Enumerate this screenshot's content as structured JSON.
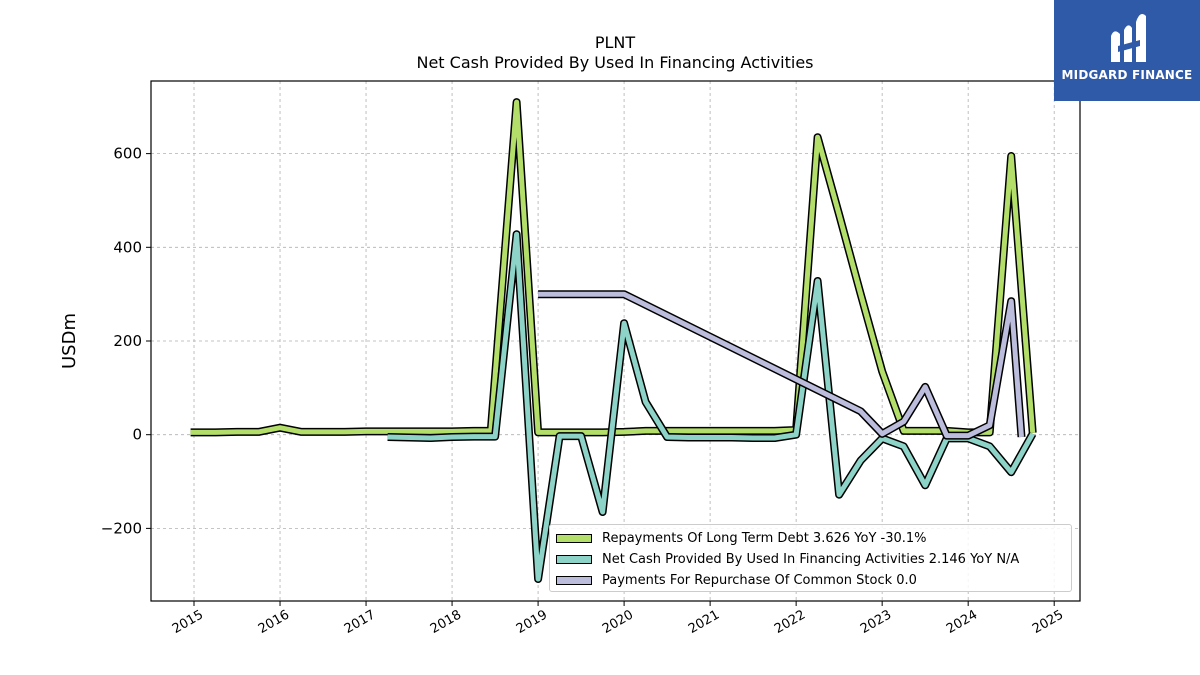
{
  "chart_data": {
    "type": "line",
    "title": "PLNT",
    "subtitle": "Net Cash Provided By Used In Financing Activities",
    "ylabel": "USDm",
    "xlabel": "",
    "xlim": [
      2014.5,
      2025.3
    ],
    "ylim": [
      -355,
      755
    ],
    "x_ticks": [
      2015,
      2016,
      2017,
      2018,
      2019,
      2020,
      2021,
      2022,
      2023,
      2024,
      2025
    ],
    "y_ticks": [
      -200,
      0,
      200,
      400,
      600
    ],
    "y_tick_labels": [
      "−200",
      "0",
      "200",
      "400",
      "600"
    ],
    "grid": true,
    "legend_position": "lower-right",
    "series": [
      {
        "name": "Repayments Of Long Term Debt",
        "legend_label": "Repayments Of Long Term Debt  3.626 YoY -30.1%",
        "color": "#b3de69",
        "points": [
          [
            2014.96,
            5
          ],
          [
            2015.25,
            5
          ],
          [
            2015.5,
            6
          ],
          [
            2015.75,
            6
          ],
          [
            2016.0,
            15
          ],
          [
            2016.25,
            6
          ],
          [
            2016.5,
            6
          ],
          [
            2016.75,
            6
          ],
          [
            2017.0,
            7
          ],
          [
            2017.25,
            7
          ],
          [
            2017.5,
            7
          ],
          [
            2017.75,
            7
          ],
          [
            2018.0,
            7
          ],
          [
            2018.25,
            8
          ],
          [
            2018.45,
            8
          ],
          [
            2018.75,
            710
          ],
          [
            2019.0,
            5
          ],
          [
            2019.25,
            5
          ],
          [
            2019.5,
            5
          ],
          [
            2019.75,
            5
          ],
          [
            2020.0,
            6
          ],
          [
            2020.25,
            8
          ],
          [
            2020.5,
            8
          ],
          [
            2020.75,
            8
          ],
          [
            2021.0,
            8
          ],
          [
            2021.25,
            8
          ],
          [
            2021.5,
            8
          ],
          [
            2021.75,
            8
          ],
          [
            2022.0,
            10
          ],
          [
            2022.25,
            635
          ],
          [
            2022.5,
            470
          ],
          [
            2022.75,
            300
          ],
          [
            2023.0,
            135
          ],
          [
            2023.25,
            8
          ],
          [
            2023.5,
            8
          ],
          [
            2023.75,
            8
          ],
          [
            2024.0,
            5
          ],
          [
            2024.25,
            5
          ],
          [
            2024.5,
            595
          ],
          [
            2024.75,
            4
          ]
        ]
      },
      {
        "name": "Net Cash Provided By Used In Financing Activities",
        "legend_label": "Net Cash Provided By Used In Financing Activities  2.146 YoY N/A",
        "color": "#8dd3c7",
        "points": [
          [
            2017.25,
            -5
          ],
          [
            2017.5,
            -6
          ],
          [
            2017.75,
            -7
          ],
          [
            2018.0,
            -5
          ],
          [
            2018.25,
            -4
          ],
          [
            2018.5,
            -4
          ],
          [
            2018.75,
            428
          ],
          [
            2019.0,
            -308
          ],
          [
            2019.25,
            -3
          ],
          [
            2019.5,
            -3
          ],
          [
            2019.75,
            -165
          ],
          [
            2020.0,
            238
          ],
          [
            2020.25,
            70
          ],
          [
            2020.5,
            -5
          ],
          [
            2020.75,
            -6
          ],
          [
            2021.0,
            -6
          ],
          [
            2021.25,
            -6
          ],
          [
            2021.5,
            -7
          ],
          [
            2021.75,
            -7
          ],
          [
            2022.0,
            0
          ],
          [
            2022.25,
            328
          ],
          [
            2022.5,
            -128
          ],
          [
            2022.75,
            -55
          ],
          [
            2023.0,
            -8
          ],
          [
            2023.25,
            -25
          ],
          [
            2023.5,
            -108
          ],
          [
            2023.75,
            -8
          ],
          [
            2024.0,
            -8
          ],
          [
            2024.25,
            -25
          ],
          [
            2024.5,
            -80
          ],
          [
            2024.75,
            2
          ]
        ]
      },
      {
        "name": "Payments For Repurchase Of Common Stock",
        "legend_label": "Payments For Repurchase Of Common Stock  0.0",
        "color": "#bcbddc",
        "points": [
          [
            2019.0,
            300
          ],
          [
            2019.25,
            300
          ],
          [
            2019.5,
            300
          ],
          [
            2019.75,
            300
          ],
          [
            2020.0,
            300
          ],
          [
            2022.75,
            50
          ],
          [
            2023.0,
            2
          ],
          [
            2023.25,
            28
          ],
          [
            2023.5,
            102
          ],
          [
            2023.75,
            -2
          ],
          [
            2024.0,
            -2
          ],
          [
            2024.25,
            20
          ],
          [
            2024.5,
            285
          ],
          [
            2024.62,
            -5
          ]
        ]
      }
    ]
  },
  "logo": {
    "text": "MIDGARD FINANCE",
    "color": "#2f5aa8"
  }
}
